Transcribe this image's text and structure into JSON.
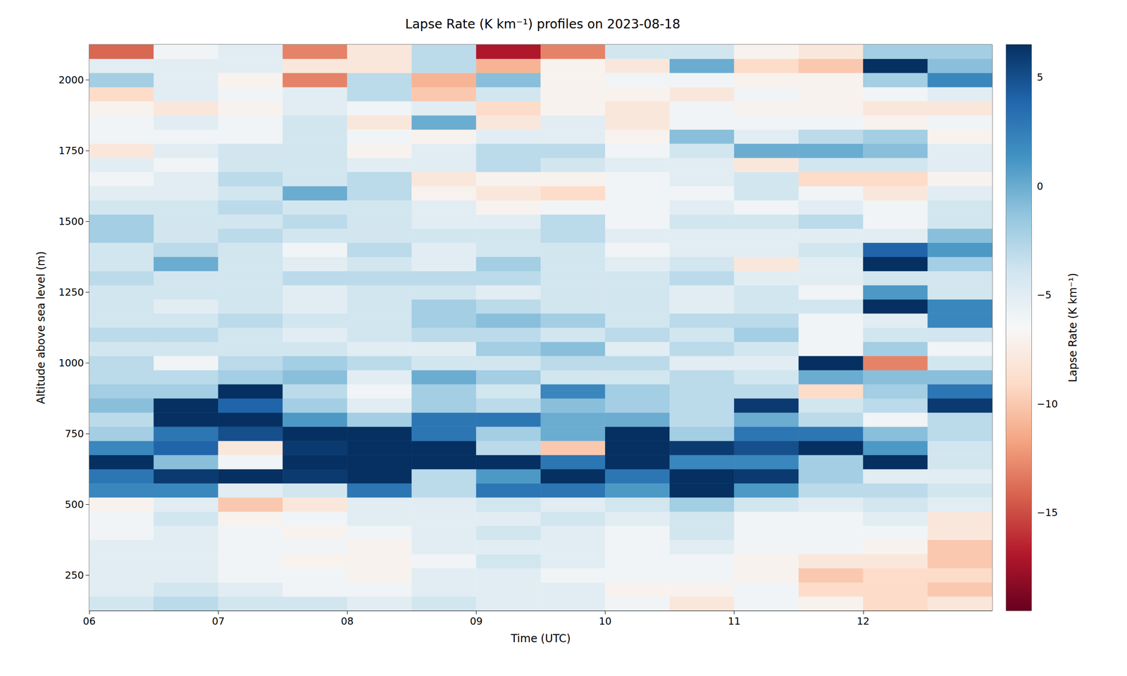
{
  "chart_data": {
    "type": "heatmap",
    "title": "Lapse Rate (K km⁻¹) profiles on 2023-08-18",
    "xlabel": "Time (UTC)",
    "ylabel": "Altitude above sea level (m)",
    "x": [
      6,
      6.5,
      7,
      7.5,
      8,
      8.5,
      9,
      9.5,
      10,
      10.5,
      11,
      11.5,
      12,
      12.5
    ],
    "y": [
      125,
      175,
      225,
      275,
      325,
      375,
      425,
      475,
      525,
      575,
      625,
      675,
      725,
      775,
      825,
      875,
      925,
      975,
      1025,
      1075,
      1125,
      1175,
      1225,
      1275,
      1325,
      1375,
      1425,
      1475,
      1525,
      1575,
      1625,
      1675,
      1725,
      1775,
      1825,
      1875,
      1925,
      1975,
      2025,
      2075
    ],
    "xlim": [
      6,
      13
    ],
    "ylim": [
      125,
      2125
    ],
    "xticks": [
      {
        "value": 6,
        "label": "06"
      },
      {
        "value": 7,
        "label": "07"
      },
      {
        "value": 8,
        "label": "08"
      },
      {
        "value": 9,
        "label": "09"
      },
      {
        "value": 10,
        "label": "10"
      },
      {
        "value": 11,
        "label": "11"
      },
      {
        "value": 12,
        "label": "12"
      }
    ],
    "yticks": [
      250,
      500,
      750,
      1000,
      1250,
      1500,
      1750,
      2000
    ],
    "grid": false,
    "values": [
      [
        -4,
        -5,
        -5,
        -5,
        -5,
        -6,
        -6,
        -7,
        2,
        3,
        7,
        2,
        -2,
        -3,
        -1,
        -2,
        -3,
        -3,
        -4,
        -3,
        -4,
        -4,
        -4,
        -3,
        -4,
        -4,
        -2,
        -2,
        -4,
        -5,
        -6,
        -5,
        -8,
        -6,
        -6,
        -7,
        -9,
        -2,
        -5,
        -14
      ],
      [
        -3,
        -4,
        -5,
        -5,
        -5,
        -5,
        -4,
        -5,
        2,
        6,
        -1,
        4,
        3,
        7,
        7,
        -2,
        -3,
        -6,
        -4,
        -3,
        -4,
        -5,
        -4,
        -4,
        0,
        -3,
        -4,
        -4,
        -4,
        -5,
        -5,
        -6,
        -5,
        -6,
        -5,
        -8,
        -5,
        -5,
        -5,
        -6
      ],
      [
        -4,
        -5,
        -6,
        -6,
        -6,
        -6,
        -7,
        -10,
        -5,
        7,
        -6,
        -8,
        5,
        7,
        4,
        7,
        -2,
        -3,
        -4,
        -4,
        -3,
        -4,
        -4,
        -4,
        -4,
        -4,
        -3,
        -4,
        -3,
        -4,
        -3,
        -4,
        -4,
        -6,
        -6,
        -7,
        -6,
        -7,
        -5,
        -5
      ],
      [
        -4,
        -6,
        -6,
        -7,
        -6,
        -7,
        -6,
        -8,
        -4,
        6,
        7,
        6,
        7,
        1,
        -2,
        -3,
        -1,
        -2,
        -4,
        -5,
        -4,
        -5,
        -5,
        -3,
        -5,
        -6,
        -4,
        -3,
        -4,
        0,
        -4,
        -4,
        -4,
        -4,
        -4,
        -5,
        -5,
        -13,
        -8,
        -13
      ],
      [
        -5,
        -6,
        -7,
        -7,
        -7,
        -6,
        -5,
        -5,
        3,
        7,
        7,
        7,
        7,
        -2,
        -5,
        -6,
        -5,
        -3,
        -5,
        -4,
        -4,
        -4,
        -4,
        -3,
        -4,
        -3,
        -4,
        -4,
        -4,
        -3,
        -3,
        -5,
        -7,
        -6,
        -8,
        -6,
        -3,
        -3,
        -8,
        -8
      ],
      [
        -4,
        -5,
        -5,
        -6,
        -5,
        -5,
        -5,
        -5,
        -3,
        -3,
        7,
        7,
        3,
        3,
        -2,
        -2,
        0,
        -4,
        -5,
        -3,
        -2,
        -2,
        -4,
        -3,
        -5,
        -5,
        -4,
        -5,
        -5,
        -7,
        -8,
        -5,
        -5,
        -7,
        0,
        -5,
        -10,
        -11,
        -3,
        -3
      ],
      [
        -5,
        -5,
        -5,
        -4,
        -5,
        -4,
        -5,
        -4,
        3,
        1,
        7,
        -3,
        -2,
        3,
        -3,
        -4,
        -2,
        -4,
        -2,
        -3,
        -1,
        -3,
        -5,
        -3,
        -2,
        -4,
        -4,
        -5,
        -7,
        -8,
        -7,
        -3,
        -3,
        -5,
        -8,
        -9,
        -4,
        -1,
        -11,
        -17
      ],
      [
        -5,
        -5,
        -6,
        -5,
        -5,
        -5,
        -4,
        -5,
        3,
        7,
        3,
        -10,
        0,
        0,
        -1,
        2,
        -4,
        -3,
        -1,
        -4,
        -2,
        -4,
        -4,
        -4,
        -4,
        -4,
        -3,
        -3,
        -6,
        -9,
        -7,
        -4,
        -3,
        -5,
        -5,
        -7,
        -7,
        -7,
        -7,
        -13
      ],
      [
        -6,
        -7,
        -6,
        -6,
        -6,
        -6,
        -5,
        -4,
        1,
        3,
        7,
        7,
        7,
        0,
        -2,
        -2,
        -4,
        -3,
        -5,
        -3,
        -4,
        -4,
        -4,
        -4,
        -5,
        -6,
        -5,
        -6,
        -6,
        -6,
        -6,
        -5,
        -6,
        -7,
        -8,
        -8,
        -7,
        -6,
        -8,
        -4
      ],
      [
        -8,
        -7,
        -6,
        -6,
        -5,
        -4,
        -4,
        -2,
        7,
        7,
        2,
        6,
        -2,
        -3,
        -3,
        -3,
        -3,
        -5,
        -3,
        -4,
        -3,
        -5,
        -5,
        -3,
        -4,
        -5,
        -5,
        -4,
        -5,
        -6,
        -5,
        -5,
        -4,
        -1,
        -6,
        -6,
        -8,
        -6,
        0,
        -4
      ],
      [
        -6,
        -6,
        -7,
        -7,
        -6,
        -6,
        -6,
        -4,
        1,
        6,
        2,
        5,
        3,
        0,
        6,
        -3,
        -4,
        -5,
        -4,
        -2,
        -3,
        -4,
        -4,
        -5,
        -8,
        -5,
        -5,
        -4,
        -6,
        -4,
        -4,
        -8,
        0,
        -5,
        -6,
        -7,
        -6,
        -7,
        -9,
        -7
      ],
      [
        -7,
        -9,
        -10,
        -8,
        -6,
        -6,
        -6,
        -5,
        -3,
        -2,
        -2,
        7,
        3,
        -3,
        -4,
        -9,
        0,
        7,
        -6,
        -6,
        -6,
        -4,
        -6,
        -5,
        -5,
        -4,
        -5,
        -3,
        -5,
        -6,
        -9,
        -4,
        0,
        -3,
        -6,
        -7,
        -7,
        -7,
        -10,
        -8
      ],
      [
        -9,
        -9,
        -9,
        -8,
        -7,
        -6,
        -5,
        -4,
        -3,
        -5,
        7,
        1,
        -1,
        -6,
        -3,
        -2,
        -1,
        -13,
        -2,
        -4,
        -5,
        7,
        1,
        -4,
        7,
        4,
        -5,
        -6,
        -6,
        -8,
        -9,
        -4,
        -1,
        -2,
        -7,
        -8,
        -6,
        -2,
        7,
        -2
      ],
      [
        -8,
        -10,
        -9,
        -10,
        -10,
        -8,
        -8,
        -5,
        -4,
        -5,
        -4,
        -4,
        -3,
        -3,
        6,
        3,
        -1,
        -4,
        -6,
        -4,
        2,
        2,
        -4,
        -4,
        -2,
        1,
        -1,
        -4,
        -4,
        -5,
        -7,
        -5,
        -5,
        -7,
        -6,
        -8,
        -5,
        2,
        -1,
        -2
      ]
    ],
    "colorbar": {
      "label": "Lapse Rate (K km⁻¹)",
      "range": [
        -19.5,
        6.5
      ],
      "ticks": [
        {
          "value": -15,
          "label": "−15"
        },
        {
          "value": -10,
          "label": "−10"
        },
        {
          "value": -5,
          "label": "−5"
        },
        {
          "value": 0,
          "label": "0"
        },
        {
          "value": 5,
          "label": "5"
        }
      ]
    }
  }
}
